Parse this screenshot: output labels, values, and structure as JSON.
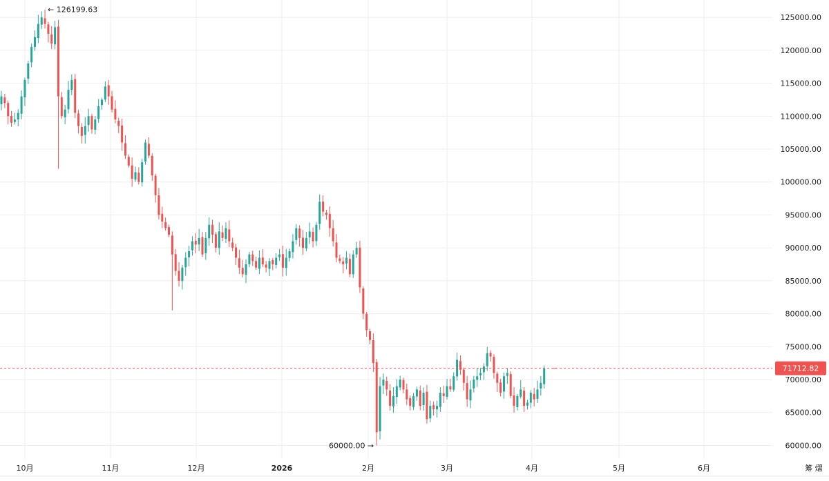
{
  "chart_data": {
    "type": "candlestick",
    "x_labels": [
      "10月",
      "11月",
      "12月",
      "2026",
      "2月",
      "3月",
      "4月",
      "5月",
      "6月"
    ],
    "y_ticks": [
      "60000.00",
      "65000.00",
      "70000.00",
      "75000.00",
      "80000.00",
      "85000.00",
      "90000.00",
      "95000.00",
      "100000.00",
      "105000.00",
      "110000.00",
      "115000.00",
      "120000.00",
      "125000.00"
    ],
    "ylim": [
      59000,
      126800
    ],
    "current_price": "71712.82",
    "high_label": "126199.63",
    "low_label": "60000.00",
    "corner_label": "筹 熠",
    "colors": {
      "up": "#26a69a",
      "down": "#ef5350",
      "grid": "#eeeeee",
      "price_line": "#ef5350"
    },
    "closes": [
      113000,
      112000,
      110000,
      109000,
      109500,
      110500,
      113000,
      115500,
      118000,
      120500,
      122000,
      124000,
      125000,
      124000,
      122500,
      121000,
      123500,
      113000,
      110000,
      111000,
      114000,
      115500,
      110500,
      108500,
      107000,
      108500,
      110000,
      108000,
      109500,
      111500,
      112500,
      114500,
      113000,
      111000,
      109500,
      108500,
      106000,
      104000,
      102500,
      100500,
      101500,
      100000,
      103000,
      106000,
      104000,
      101000,
      98000,
      95000,
      94000,
      93000,
      92000,
      89000,
      86500,
      85000,
      87000,
      88500,
      89500,
      91000,
      90500,
      91500,
      89000,
      91500,
      93500,
      92000,
      90000,
      92500,
      91500,
      93000,
      91000,
      90000,
      88500,
      87000,
      86000,
      87500,
      89000,
      88000,
      87000,
      88500,
      87500,
      87000,
      88000,
      87500,
      88500,
      89000,
      87000,
      88500,
      89500,
      91000,
      93000,
      91500,
      90000,
      91500,
      92500,
      91000,
      93500,
      97000,
      95500,
      95000,
      93000,
      91000,
      88500,
      88000,
      87500,
      88500,
      86000,
      89000,
      90000,
      84000,
      80000,
      77500,
      76000,
      72500,
      62000,
      69000,
      70000,
      68500,
      66000,
      67500,
      69000,
      70000,
      68500,
      67000,
      66000,
      67500,
      68500,
      66000,
      68000,
      64000,
      66000,
      65500,
      66000,
      68000,
      67500,
      69000,
      68500,
      70500,
      73000,
      71500,
      69500,
      67000,
      68500,
      70000,
      70500,
      71000,
      72000,
      74000,
      73500,
      71000,
      69500,
      68000,
      70500,
      71000,
      67500,
      66000,
      67500,
      68500,
      66000,
      66500,
      68000,
      67000,
      68500,
      69500,
      71712
    ],
    "markers": {
      "high_index": 13,
      "low_index": 112,
      "last_index": 164
    }
  }
}
